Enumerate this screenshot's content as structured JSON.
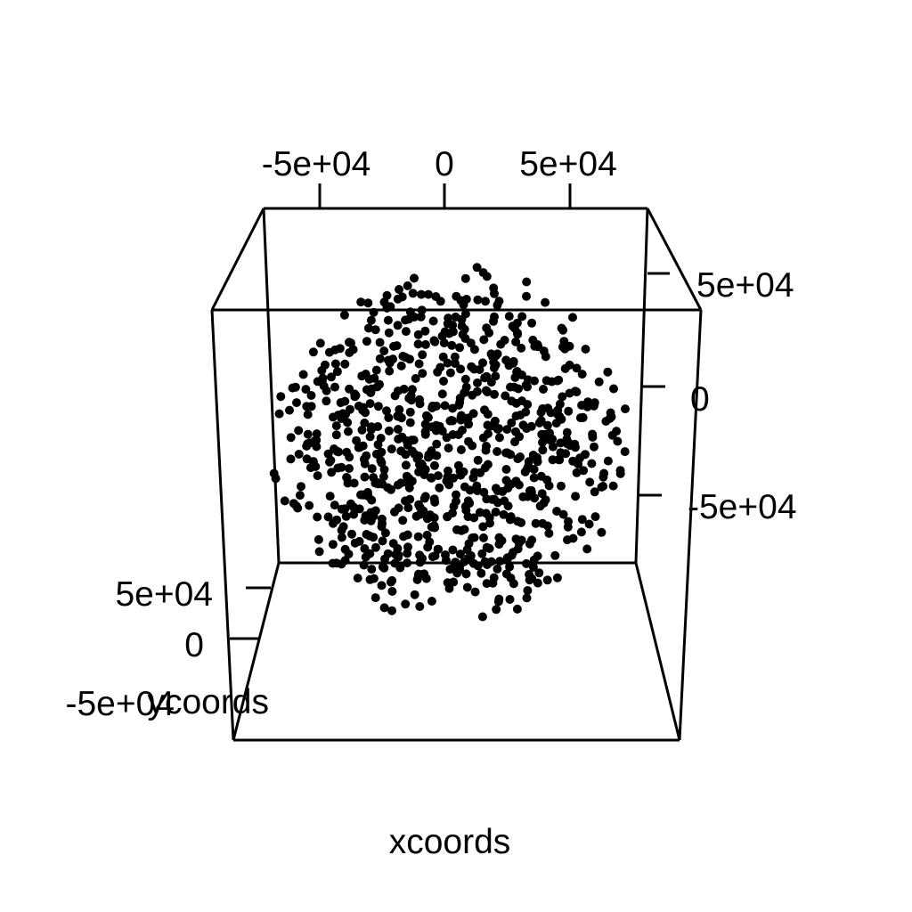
{
  "chart_data": {
    "type": "scatter",
    "projection": "3d",
    "xlabel": "xcoords",
    "ylabel": "ycoords",
    "zlabel": "",
    "ticks": {
      "top": [
        "-5e+04",
        "0",
        "5e+04"
      ],
      "right": [
        "5e+04",
        "0",
        "-5e+04"
      ],
      "left": [
        "5e+04",
        "0",
        "-5e+04"
      ]
    },
    "point_color": "#000000",
    "n_points": 840,
    "distribution": "roughly spherical cloud of points centred near 0 on all three axes, radius about 1e+05"
  }
}
